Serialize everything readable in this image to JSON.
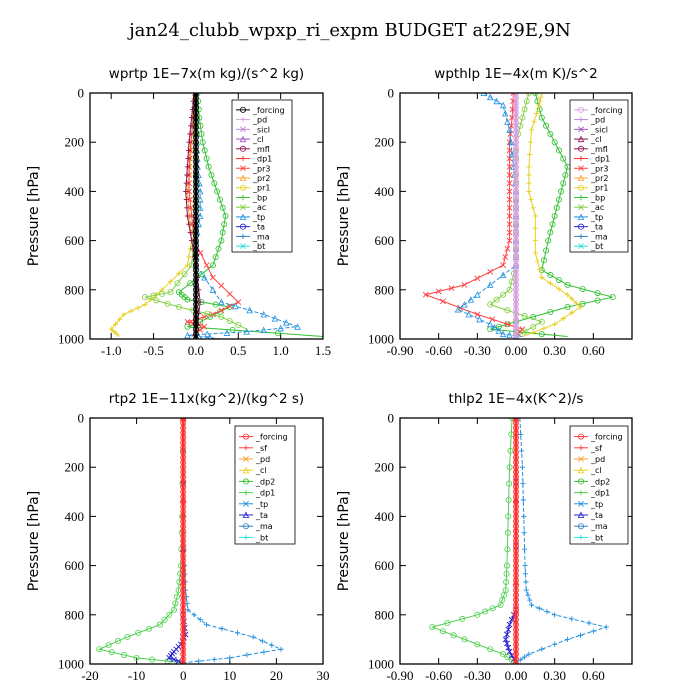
{
  "title": "jan24_clubb_wpxp_ri_expm  BUDGET at229E,9N",
  "chart_data": [
    {
      "type": "line",
      "title": "wprtp   1E−7x(m kg)/(s^2 kg)",
      "ylabel": "Pressure [hPa]",
      "xlim": [
        -1.25,
        1.5
      ],
      "ylim": [
        1000,
        0
      ],
      "xticks": [
        -1.0,
        -0.5,
        0.0,
        0.5,
        1.0,
        1.5
      ],
      "xtick_labels": [
        "-1.0",
        "-0.5",
        "0.0",
        "0.5",
        "1.0",
        "1.5"
      ],
      "yticks": [
        0,
        200,
        400,
        600,
        800,
        1000
      ],
      "ytick_labels": [
        "0",
        "200",
        "400",
        "600",
        "800",
        "1000"
      ],
      "legend": [
        {
          "name": "_forcing",
          "color": "#000000"
        },
        {
          "name": "_pd",
          "color": "#d8a0e0"
        },
        {
          "name": "_sicl",
          "color": "#c080d8"
        },
        {
          "name": "_cl",
          "color": "#a050c0"
        },
        {
          "name": "_mfl",
          "color": "#901050"
        },
        {
          "name": "_dp1",
          "color": "#ff3030"
        },
        {
          "name": "_pr3",
          "color": "#ff4040"
        },
        {
          "name": "_pr2",
          "color": "#ffa030"
        },
        {
          "name": "_pr1",
          "color": "#e8d020"
        },
        {
          "name": "_bp",
          "color": "#30c030"
        },
        {
          "name": "_ac",
          "color": "#80d040"
        },
        {
          "name": "_tp",
          "color": "#2090e0"
        },
        {
          "name": "_ta",
          "color": "#2020d0"
        },
        {
          "name": "_ma",
          "color": "#3080c0"
        },
        {
          "name": "_bt",
          "color": "#30e0e0"
        }
      ],
      "series": [
        {
          "name": "_bp",
          "color": "#30c030",
          "x": [
            0.02,
            0.04,
            0.08,
            0.15,
            0.25,
            0.35,
            0.3,
            0.2,
            -0.2,
            -0.1,
            0.4,
            0.05,
            -0.1,
            1.5
          ],
          "y": [
            0,
            100,
            200,
            300,
            400,
            500,
            600,
            700,
            810,
            840,
            870,
            930,
            950,
            990
          ]
        },
        {
          "name": "_pr1",
          "color": "#e8d020",
          "x": [
            -0.03,
            -0.04,
            -0.05,
            -0.07,
            -0.1,
            -0.08,
            -0.05,
            -0.1,
            -0.4,
            -0.6,
            -0.85,
            -1.0,
            -0.9
          ],
          "y": [
            0,
            100,
            200,
            300,
            400,
            500,
            600,
            700,
            800,
            860,
            900,
            960,
            990
          ]
        },
        {
          "name": "_pr3",
          "color": "#ff4040",
          "x": [
            -0.01,
            -0.03,
            -0.06,
            -0.08,
            -0.08,
            -0.05,
            -0.02,
            0.2,
            0.5,
            0.2,
            -0.1,
            0.1,
            -0.05
          ],
          "y": [
            0,
            100,
            200,
            300,
            400,
            500,
            600,
            750,
            850,
            900,
            930,
            950,
            990
          ]
        },
        {
          "name": "_tp",
          "color": "#2090e0",
          "x": [
            0.0,
            0.0,
            0.01,
            0.02,
            0.05,
            0.05,
            0.0,
            0.0,
            0.3,
            0.8,
            1.2,
            0.6,
            -0.1,
            0.3
          ],
          "y": [
            0,
            100,
            200,
            300,
            400,
            500,
            600,
            700,
            850,
            900,
            950,
            970,
            985,
            1000
          ]
        },
        {
          "name": "_ac",
          "color": "#80d040",
          "x": [
            0.0,
            0.0,
            0.0,
            0.0,
            0.0,
            0.0,
            -0.05,
            -0.3,
            -0.6,
            -0.2,
            0.3,
            0.6
          ],
          "y": [
            0,
            100,
            200,
            300,
            400,
            500,
            700,
            810,
            830,
            870,
            910,
            960
          ]
        },
        {
          "name": "_mfl",
          "color": "#901050",
          "x": [
            -0.02,
            -0.05,
            -0.08,
            -0.1,
            -0.12,
            -0.1,
            -0.05,
            0.0,
            0.05,
            0.0
          ],
          "y": [
            0,
            100,
            200,
            300,
            400,
            500,
            600,
            700,
            850,
            990
          ]
        },
        {
          "name": "_forcing",
          "color": "#000000",
          "x": [
            0,
            0
          ],
          "y": [
            0,
            1000
          ]
        }
      ]
    },
    {
      "type": "line",
      "title": "wpthlp   1E−4x(m K)/s^2",
      "ylabel": "Pressure [hPa]",
      "xlim": [
        -0.9,
        0.9
      ],
      "ylim": [
        1000,
        0
      ],
      "xticks": [
        -0.9,
        -0.6,
        -0.3,
        0.0,
        0.3,
        0.6
      ],
      "xtick_labels": [
        "-0.90",
        "-0.60",
        "-0.30",
        "0.00",
        "0.30",
        "0.60"
      ],
      "yticks": [
        0,
        200,
        400,
        600,
        800,
        1000
      ],
      "ytick_labels": [
        "0",
        "200",
        "400",
        "600",
        "800",
        "1000"
      ],
      "legend": [
        {
          "name": "_forcing",
          "color": "#d8a0e0"
        },
        {
          "name": "_pd",
          "color": "#c080d8"
        },
        {
          "name": "_sicl",
          "color": "#a050c0"
        },
        {
          "name": "_cl",
          "color": "#901050"
        },
        {
          "name": "_mfl",
          "color": "#901050"
        },
        {
          "name": "_dp1",
          "color": "#ff3030"
        },
        {
          "name": "_pr3",
          "color": "#ff4040"
        },
        {
          "name": "_pr2",
          "color": "#ffa030"
        },
        {
          "name": "_pr1",
          "color": "#e8d020"
        },
        {
          "name": "_bp",
          "color": "#30c030"
        },
        {
          "name": "_ac",
          "color": "#80d040"
        },
        {
          "name": "_tp",
          "color": "#2090e0"
        },
        {
          "name": "_ta",
          "color": "#2020d0"
        },
        {
          "name": "_ma",
          "color": "#3080c0"
        },
        {
          "name": "_bt",
          "color": "#30e0e0"
        }
      ],
      "series": [
        {
          "name": "_bp",
          "color": "#30c030",
          "x": [
            0.15,
            0.2,
            0.3,
            0.4,
            0.35,
            0.3,
            0.25,
            0.2,
            0.4,
            0.75,
            0.4,
            0.0,
            -0.2,
            0.4
          ],
          "y": [
            0,
            100,
            200,
            300,
            400,
            500,
            600,
            720,
            780,
            830,
            870,
            930,
            960,
            990
          ]
        },
        {
          "name": "_pr1",
          "color": "#e8d020",
          "x": [
            0.2,
            0.18,
            0.12,
            0.1,
            0.1,
            0.15,
            0.15,
            0.2,
            0.4,
            0.5,
            0.3,
            0.05
          ],
          "y": [
            0,
            50,
            150,
            300,
            400,
            500,
            650,
            750,
            820,
            870,
            940,
            990
          ]
        },
        {
          "name": "_pr3",
          "color": "#ff4040",
          "x": [
            -0.02,
            -0.03,
            -0.05,
            -0.05,
            -0.05,
            -0.05,
            -0.05,
            -0.1,
            -0.4,
            -0.7,
            -0.3,
            0.05,
            0.0
          ],
          "y": [
            0,
            100,
            200,
            300,
            400,
            500,
            600,
            700,
            780,
            820,
            900,
            960,
            990
          ]
        },
        {
          "name": "_tp",
          "color": "#2090e0",
          "x": [
            -0.25,
            -0.1,
            -0.05,
            -0.02,
            0.0,
            0.0,
            0.0,
            0.0,
            -0.3,
            -0.45,
            -0.2,
            -0.1,
            0.05
          ],
          "y": [
            0,
            50,
            150,
            300,
            400,
            500,
            600,
            700,
            820,
            880,
            940,
            980,
            990
          ]
        },
        {
          "name": "_ac",
          "color": "#80d040",
          "x": [
            0.1,
            0.05,
            0.0,
            0.0,
            0.0,
            0.0,
            0.0,
            0.0,
            -0.05,
            -0.2,
            0.2,
            0.0
          ],
          "y": [
            0,
            100,
            200,
            300,
            400,
            500,
            600,
            700,
            800,
            860,
            930,
            990
          ]
        },
        {
          "name": "_forcing",
          "color": "#d8a0e0",
          "x": [
            0,
            0
          ],
          "y": [
            0,
            1000
          ]
        }
      ]
    },
    {
      "type": "line",
      "title": "rtp2   1E−11x(kg^2)/(kg^2 s)",
      "ylabel": "Pressure [hPa]",
      "xlim": [
        -20,
        30
      ],
      "ylim": [
        1000,
        0
      ],
      "xticks": [
        -20,
        -10,
        0,
        10,
        20,
        30
      ],
      "xtick_labels": [
        "-20",
        "-10",
        "0",
        "10",
        "20",
        "30"
      ],
      "yticks": [
        0,
        200,
        400,
        600,
        800,
        1000
      ],
      "ytick_labels": [
        "0",
        "200",
        "400",
        "600",
        "800",
        "1000"
      ],
      "legend": [
        {
          "name": "_forcing",
          "color": "#ff3030"
        },
        {
          "name": "_sf",
          "color": "#ff4040"
        },
        {
          "name": "_pd",
          "color": "#ffa030"
        },
        {
          "name": "_cl",
          "color": "#e8d020"
        },
        {
          "name": "_dp2",
          "color": "#30c030"
        },
        {
          "name": "_dp1",
          "color": "#50d050"
        },
        {
          "name": "_tp",
          "color": "#2090e0"
        },
        {
          "name": "_ta",
          "color": "#2020d0"
        },
        {
          "name": "_ma",
          "color": "#3080c0"
        },
        {
          "name": "_bt",
          "color": "#30e0e0"
        }
      ],
      "series": [
        {
          "name": "_dp1",
          "color": "#50d050",
          "x": [
            0.0,
            -0.2,
            -0.5,
            -1.0,
            -2.0,
            -5.0,
            -12.0,
            -18.0,
            -10.0,
            0.0
          ],
          "y": [
            0,
            400,
            600,
            700,
            780,
            840,
            890,
            940,
            975,
            995
          ]
        },
        {
          "name": "_tp",
          "color": "#2090e0",
          "x": [
            0.0,
            0.1,
            0.3,
            0.5,
            1.0,
            5.0,
            15.0,
            21.0,
            10.0,
            0.0
          ],
          "y": [
            0,
            400,
            600,
            700,
            780,
            840,
            890,
            940,
            975,
            995
          ]
        },
        {
          "name": "_ta",
          "color": "#2020d0",
          "x": [
            0.0,
            0.0,
            0.5,
            -0.5,
            -2.0,
            -3.0,
            0.0
          ],
          "y": [
            0,
            800,
            880,
            920,
            950,
            975,
            995
          ]
        },
        {
          "name": "_forcing",
          "color": "#ff3030",
          "x": [
            0,
            0
          ],
          "y": [
            0,
            1000
          ]
        }
      ]
    },
    {
      "type": "line",
      "title": "thlp2   1E−4x(K^2)/s",
      "ylabel": "Pressure [hPa]",
      "xlim": [
        -0.9,
        0.9
      ],
      "ylim": [
        1000,
        0
      ],
      "xticks": [
        -0.9,
        -0.6,
        -0.3,
        0.0,
        0.3,
        0.6
      ],
      "xtick_labels": [
        "-0.90",
        "-0.60",
        "-0.30",
        "0.00",
        "0.30",
        "0.60"
      ],
      "yticks": [
        0,
        200,
        400,
        600,
        800,
        1000
      ],
      "ytick_labels": [
        "0",
        "200",
        "400",
        "600",
        "800",
        "1000"
      ],
      "legend": [
        {
          "name": "_forcing",
          "color": "#ff3030"
        },
        {
          "name": "_sf",
          "color": "#ff4040"
        },
        {
          "name": "_pd",
          "color": "#ffa030"
        },
        {
          "name": "_cl",
          "color": "#e8d020"
        },
        {
          "name": "_dp2",
          "color": "#30c030"
        },
        {
          "name": "_dp1",
          "color": "#50d050"
        },
        {
          "name": "_tp",
          "color": "#2090e0"
        },
        {
          "name": "_ta",
          "color": "#2020d0"
        },
        {
          "name": "_ma",
          "color": "#3080c0"
        },
        {
          "name": "_bt",
          "color": "#30e0e0"
        }
      ],
      "series": [
        {
          "name": "_dp1",
          "color": "#50d050",
          "x": [
            -0.03,
            -0.05,
            -0.06,
            -0.07,
            -0.08,
            -0.12,
            -0.3,
            -0.65,
            -0.4,
            -0.1,
            0.0
          ],
          "y": [
            0,
            200,
            400,
            600,
            700,
            760,
            800,
            850,
            900,
            960,
            995
          ]
        },
        {
          "name": "_tp",
          "color": "#2090e0",
          "x": [
            0.03,
            0.05,
            0.06,
            0.07,
            0.08,
            0.12,
            0.3,
            0.7,
            0.4,
            0.1,
            0.0
          ],
          "y": [
            0,
            200,
            400,
            600,
            700,
            760,
            800,
            850,
            900,
            960,
            995
          ]
        },
        {
          "name": "_ta",
          "color": "#2020d0",
          "x": [
            0.0,
            0.0,
            -0.05,
            -0.08,
            -0.05,
            0.0
          ],
          "y": [
            0,
            780,
            840,
            900,
            950,
            995
          ]
        },
        {
          "name": "_forcing",
          "color": "#ff3030",
          "x": [
            0,
            0
          ],
          "y": [
            0,
            1000
          ]
        }
      ]
    }
  ]
}
